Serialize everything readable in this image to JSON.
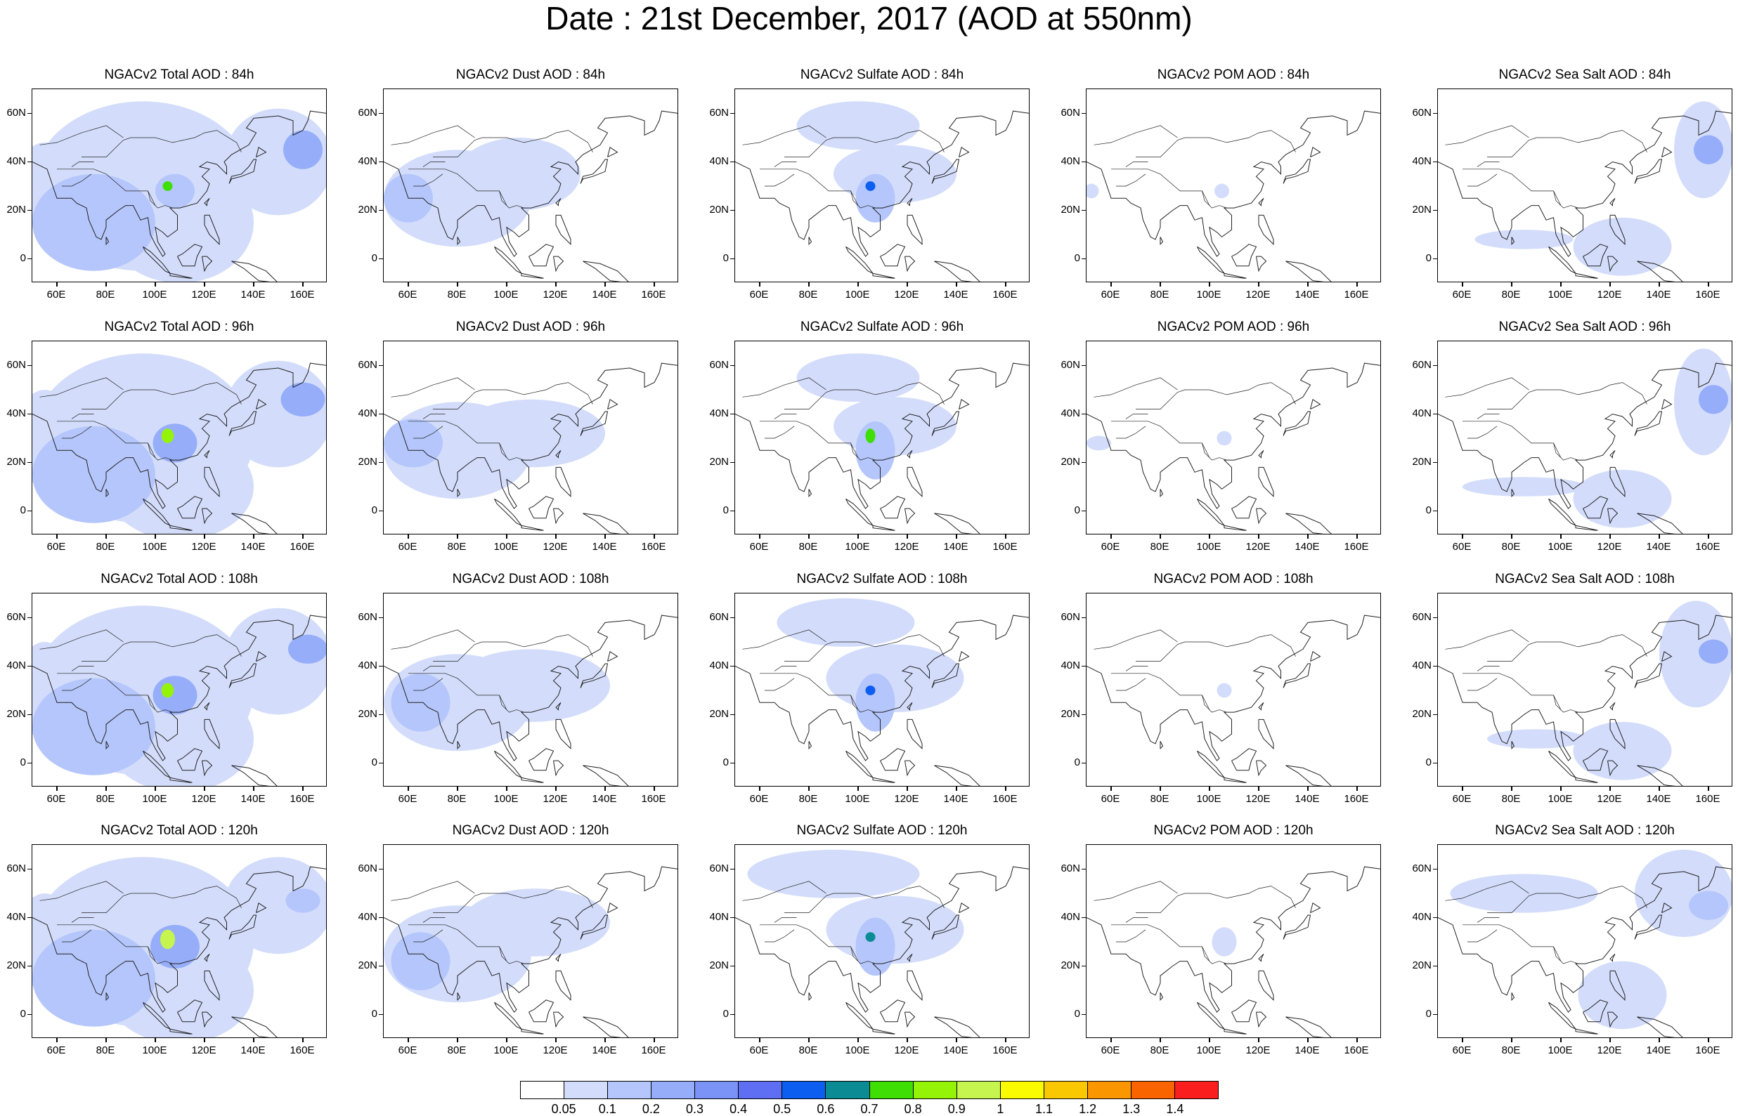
{
  "figure_title": "Date : 21st December, 2017 (AOD at 550nm)",
  "panel_titles": [
    [
      "NGACv2 Total AOD : 84h",
      "NGACv2 Dust AOD : 84h",
      "NGACv2 Sulfate AOD : 84h",
      "NGACv2 POM AOD : 84h",
      "NGACv2 Sea Salt AOD : 84h"
    ],
    [
      "NGACv2 Total AOD : 96h",
      "NGACv2 Dust AOD : 96h",
      "NGACv2 Sulfate AOD : 96h",
      "NGACv2 POM AOD : 96h",
      "NGACv2 Sea Salt AOD : 96h"
    ],
    [
      "NGACv2 Total AOD : 108h",
      "NGACv2 Dust AOD : 108h",
      "NGACv2 Sulfate AOD : 108h",
      "NGACv2 POM AOD : 108h",
      "NGACv2 Sea Salt AOD : 108h"
    ],
    [
      "NGACv2 Total AOD : 120h",
      "NGACv2 Dust AOD : 120h",
      "NGACv2 Sulfate AOD : 120h",
      "NGACv2 POM AOD : 120h",
      "NGACv2 Sea Salt  AOD : 120h"
    ]
  ],
  "map_extent": {
    "lon_range": [
      50,
      170
    ],
    "lat_range": [
      -10,
      70
    ]
  },
  "lon_ticks": [
    {
      "value": 60,
      "label": "60E"
    },
    {
      "value": 80,
      "label": "80E"
    },
    {
      "value": 100,
      "label": "100E"
    },
    {
      "value": 120,
      "label": "120E"
    },
    {
      "value": 140,
      "label": "140E"
    },
    {
      "value": 160,
      "label": "160E"
    }
  ],
  "lat_ticks": [
    {
      "value": 0,
      "label": "0"
    },
    {
      "value": 20,
      "label": "20N"
    },
    {
      "value": 40,
      "label": "40N"
    },
    {
      "value": 60,
      "label": "60N"
    }
  ],
  "colorbar": {
    "colors": [
      "#ffffff",
      "#d3ddfb",
      "#b4c6fb",
      "#96aefa",
      "#7b92f7",
      "#5f6ff3",
      "#0b5ef0",
      "#0b8c95",
      "#3fde05",
      "#95f308",
      "#c6f54f",
      "#fafa00",
      "#fac800",
      "#fa9600",
      "#fa6400",
      "#fa1e1e"
    ],
    "labels": [
      "0.05",
      "0.1",
      "0.2",
      "0.3",
      "0.4",
      "0.5",
      "0.6",
      "0.7",
      "0.8",
      "0.9",
      "1",
      "1.1",
      "1.2",
      "1.3",
      "1.4"
    ]
  },
  "aod_fields": {
    "description_species": [
      "Total",
      "Dust",
      "Sulfate",
      "POM",
      "Sea Salt"
    ],
    "Total": [
      [
        {
          "lon": 55,
          "lat": 30,
          "rx": 12,
          "ry": 18,
          "level": 1
        },
        {
          "lon": 95,
          "lat": 30,
          "rx": 45,
          "ry": 35,
          "level": 1
        },
        {
          "lon": 110,
          "lat": 15,
          "rx": 30,
          "ry": 25,
          "level": 1
        },
        {
          "lon": 150,
          "lat": 40,
          "rx": 22,
          "ry": 22,
          "level": 1
        },
        {
          "lon": 160,
          "lat": 45,
          "rx": 8,
          "ry": 8,
          "level": 3
        },
        {
          "lon": 75,
          "lat": 15,
          "rx": 25,
          "ry": 20,
          "level": 2
        },
        {
          "lon": 108,
          "lat": 28,
          "rx": 8,
          "ry": 7,
          "level": 2
        },
        {
          "lon": 105,
          "lat": 30,
          "rx": 2,
          "ry": 2,
          "level": 8
        }
      ],
      [
        {
          "lon": 55,
          "lat": 30,
          "rx": 12,
          "ry": 20,
          "level": 1
        },
        {
          "lon": 95,
          "lat": 30,
          "rx": 45,
          "ry": 35,
          "level": 1
        },
        {
          "lon": 110,
          "lat": 10,
          "rx": 30,
          "ry": 22,
          "level": 1
        },
        {
          "lon": 150,
          "lat": 40,
          "rx": 22,
          "ry": 22,
          "level": 1
        },
        {
          "lon": 160,
          "lat": 46,
          "rx": 9,
          "ry": 7,
          "level": 3
        },
        {
          "lon": 75,
          "lat": 15,
          "rx": 25,
          "ry": 20,
          "level": 2
        },
        {
          "lon": 108,
          "lat": 28,
          "rx": 9,
          "ry": 8,
          "level": 3
        },
        {
          "lon": 105,
          "lat": 31,
          "rx": 2.5,
          "ry": 3,
          "level": 9
        }
      ],
      [
        {
          "lon": 55,
          "lat": 30,
          "rx": 12,
          "ry": 20,
          "level": 1
        },
        {
          "lon": 95,
          "lat": 30,
          "rx": 45,
          "ry": 35,
          "level": 1
        },
        {
          "lon": 110,
          "lat": 10,
          "rx": 30,
          "ry": 22,
          "level": 1
        },
        {
          "lon": 150,
          "lat": 42,
          "rx": 22,
          "ry": 22,
          "level": 1
        },
        {
          "lon": 162,
          "lat": 47,
          "rx": 8,
          "ry": 6,
          "level": 3
        },
        {
          "lon": 75,
          "lat": 15,
          "rx": 25,
          "ry": 20,
          "level": 2
        },
        {
          "lon": 108,
          "lat": 28,
          "rx": 9,
          "ry": 8,
          "level": 3
        },
        {
          "lon": 105,
          "lat": 30,
          "rx": 2.5,
          "ry": 3,
          "level": 9
        }
      ],
      [
        {
          "lon": 55,
          "lat": 30,
          "rx": 12,
          "ry": 20,
          "level": 1
        },
        {
          "lon": 95,
          "lat": 30,
          "rx": 45,
          "ry": 35,
          "level": 1
        },
        {
          "lon": 110,
          "lat": 10,
          "rx": 30,
          "ry": 22,
          "level": 1
        },
        {
          "lon": 150,
          "lat": 45,
          "rx": 22,
          "ry": 20,
          "level": 1
        },
        {
          "lon": 160,
          "lat": 47,
          "rx": 7,
          "ry": 5,
          "level": 2
        },
        {
          "lon": 75,
          "lat": 15,
          "rx": 25,
          "ry": 20,
          "level": 2
        },
        {
          "lon": 108,
          "lat": 28,
          "rx": 10,
          "ry": 9,
          "level": 3
        },
        {
          "lon": 105,
          "lat": 31,
          "rx": 3,
          "ry": 4,
          "level": 10
        }
      ]
    ],
    "Dust": [
      [
        {
          "lon": 80,
          "lat": 25,
          "rx": 30,
          "ry": 20,
          "level": 1
        },
        {
          "lon": 105,
          "lat": 35,
          "rx": 25,
          "ry": 15,
          "level": 1
        },
        {
          "lon": 60,
          "lat": 25,
          "rx": 10,
          "ry": 10,
          "level": 2
        }
      ],
      [
        {
          "lon": 80,
          "lat": 25,
          "rx": 30,
          "ry": 20,
          "level": 1
        },
        {
          "lon": 110,
          "lat": 32,
          "rx": 30,
          "ry": 14,
          "level": 1
        },
        {
          "lon": 62,
          "lat": 28,
          "rx": 12,
          "ry": 10,
          "level": 2
        }
      ],
      [
        {
          "lon": 80,
          "lat": 25,
          "rx": 30,
          "ry": 20,
          "level": 1
        },
        {
          "lon": 110,
          "lat": 32,
          "rx": 32,
          "ry": 15,
          "level": 1
        },
        {
          "lon": 65,
          "lat": 25,
          "rx": 12,
          "ry": 12,
          "level": 2
        }
      ],
      [
        {
          "lon": 80,
          "lat": 25,
          "rx": 30,
          "ry": 20,
          "level": 1
        },
        {
          "lon": 112,
          "lat": 38,
          "rx": 30,
          "ry": 14,
          "level": 1
        },
        {
          "lon": 65,
          "lat": 22,
          "rx": 12,
          "ry": 12,
          "level": 2
        }
      ]
    ],
    "Sulfate": [
      [
        {
          "lon": 100,
          "lat": 55,
          "rx": 25,
          "ry": 10,
          "level": 1
        },
        {
          "lon": 115,
          "lat": 35,
          "rx": 25,
          "ry": 12,
          "level": 1
        },
        {
          "lon": 107,
          "lat": 25,
          "rx": 8,
          "ry": 10,
          "level": 2
        },
        {
          "lon": 105,
          "lat": 30,
          "rx": 2,
          "ry": 2,
          "level": 6
        }
      ],
      [
        {
          "lon": 100,
          "lat": 55,
          "rx": 25,
          "ry": 10,
          "level": 1
        },
        {
          "lon": 115,
          "lat": 35,
          "rx": 25,
          "ry": 12,
          "level": 1
        },
        {
          "lon": 107,
          "lat": 25,
          "rx": 8,
          "ry": 12,
          "level": 2
        },
        {
          "lon": 105,
          "lat": 31,
          "rx": 2,
          "ry": 3,
          "level": 8
        }
      ],
      [
        {
          "lon": 95,
          "lat": 58,
          "rx": 28,
          "ry": 10,
          "level": 1
        },
        {
          "lon": 115,
          "lat": 35,
          "rx": 28,
          "ry": 14,
          "level": 1
        },
        {
          "lon": 107,
          "lat": 25,
          "rx": 8,
          "ry": 12,
          "level": 2
        },
        {
          "lon": 105,
          "lat": 30,
          "rx": 2,
          "ry": 2,
          "level": 6
        }
      ],
      [
        {
          "lon": 90,
          "lat": 58,
          "rx": 35,
          "ry": 10,
          "level": 1
        },
        {
          "lon": 115,
          "lat": 35,
          "rx": 28,
          "ry": 14,
          "level": 1
        },
        {
          "lon": 107,
          "lat": 28,
          "rx": 8,
          "ry": 12,
          "level": 2
        },
        {
          "lon": 105,
          "lat": 32,
          "rx": 2,
          "ry": 2,
          "level": 7
        }
      ]
    ],
    "POM": [
      [
        {
          "lon": 105,
          "lat": 28,
          "rx": 3,
          "ry": 3,
          "level": 1
        },
        {
          "lon": 52,
          "lat": 28,
          "rx": 3,
          "ry": 3,
          "level": 1
        }
      ],
      [
        {
          "lon": 106,
          "lat": 30,
          "rx": 3,
          "ry": 3,
          "level": 1
        },
        {
          "lon": 55,
          "lat": 28,
          "rx": 5,
          "ry": 3,
          "level": 1
        }
      ],
      [
        {
          "lon": 106,
          "lat": 30,
          "rx": 3,
          "ry": 3,
          "level": 1
        }
      ],
      [
        {
          "lon": 106,
          "lat": 30,
          "rx": 5,
          "ry": 6,
          "level": 1
        }
      ]
    ],
    "Sea Salt": [
      [
        {
          "lon": 158,
          "lat": 45,
          "rx": 12,
          "ry": 20,
          "level": 1
        },
        {
          "lon": 160,
          "lat": 45,
          "rx": 6,
          "ry": 6,
          "level": 3
        },
        {
          "lon": 125,
          "lat": 5,
          "rx": 20,
          "ry": 12,
          "level": 1
        },
        {
          "lon": 85,
          "lat": 8,
          "rx": 20,
          "ry": 4,
          "level": 1
        }
      ],
      [
        {
          "lon": 158,
          "lat": 45,
          "rx": 12,
          "ry": 22,
          "level": 1
        },
        {
          "lon": 162,
          "lat": 46,
          "rx": 6,
          "ry": 6,
          "level": 3
        },
        {
          "lon": 125,
          "lat": 5,
          "rx": 20,
          "ry": 12,
          "level": 1
        },
        {
          "lon": 85,
          "lat": 10,
          "rx": 25,
          "ry": 4,
          "level": 1
        }
      ],
      [
        {
          "lon": 155,
          "lat": 45,
          "rx": 15,
          "ry": 22,
          "level": 1
        },
        {
          "lon": 162,
          "lat": 46,
          "rx": 6,
          "ry": 5,
          "level": 3
        },
        {
          "lon": 125,
          "lat": 5,
          "rx": 20,
          "ry": 12,
          "level": 1
        },
        {
          "lon": 90,
          "lat": 10,
          "rx": 20,
          "ry": 4,
          "level": 1
        }
      ],
      [
        {
          "lon": 150,
          "lat": 50,
          "rx": 20,
          "ry": 18,
          "level": 1
        },
        {
          "lon": 160,
          "lat": 45,
          "rx": 8,
          "ry": 6,
          "level": 2
        },
        {
          "lon": 125,
          "lat": 8,
          "rx": 18,
          "ry": 14,
          "level": 1
        },
        {
          "lon": 85,
          "lat": 50,
          "rx": 30,
          "ry": 8,
          "level": 1
        }
      ]
    ]
  }
}
